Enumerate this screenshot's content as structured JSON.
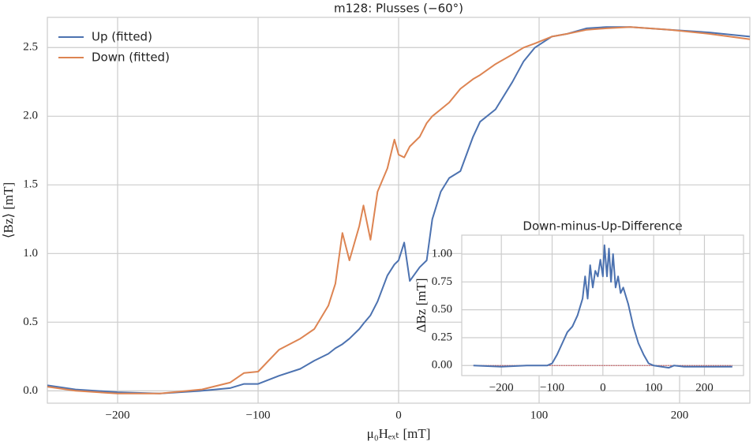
{
  "chart_data": [
    {
      "type": "line",
      "title": "m128: Plusses (−60°)",
      "xlabel": "μ₀Hₑₓₜ [mT]",
      "ylabel": "⟨Bz⟩ [mT]",
      "xlim": [
        -250,
        250
      ],
      "ylim": [
        -0.09,
        2.72
      ],
      "xticks": [
        {
          "value": -200,
          "label": "−200"
        },
        {
          "value": -100,
          "label": "−100"
        },
        0,
        100,
        200
      ],
      "yticks": [
        {
          "value": 0,
          "label": "0.0"
        },
        0.5,
        {
          "value": 1,
          "label": "1.0"
        },
        1.5,
        {
          "value": 2,
          "label": "2.0"
        },
        2.5
      ],
      "grid": true,
      "legend": "upper left",
      "x": [
        -250,
        -230,
        -200,
        -170,
        -140,
        -120,
        -110,
        -100,
        -85,
        -70,
        -60,
        -50,
        -45,
        -40,
        -35,
        -28,
        -25,
        -20,
        -15,
        -8,
        -3,
        0,
        4,
        8,
        15,
        20,
        24,
        30,
        36,
        44,
        53,
        58,
        69,
        81,
        89,
        97,
        109,
        120,
        134,
        148,
        165,
        193,
        221,
        250
      ],
      "series": [
        {
          "name": "Up (fitted)",
          "color": "#4c72b0",
          "values": [
            0.04,
            0.01,
            -0.01,
            -0.02,
            0,
            0.02,
            0.05,
            0.05,
            0.11,
            0.16,
            0.22,
            0.27,
            0.31,
            0.34,
            0.38,
            0.45,
            0.49,
            0.55,
            0.65,
            0.84,
            0.92,
            0.95,
            1.08,
            0.8,
            0.9,
            0.95,
            1.25,
            1.45,
            1.55,
            1.6,
            1.85,
            1.96,
            2.05,
            2.25,
            2.4,
            2.5,
            2.58,
            2.6,
            2.64,
            2.65,
            2.65,
            2.63,
            2.61,
            2.58
          ]
        },
        {
          "name": "Down (fitted)",
          "color": "#dd8452",
          "values": [
            0.03,
            0,
            -0.02,
            -0.02,
            0.01,
            0.06,
            0.13,
            0.14,
            0.3,
            0.38,
            0.45,
            0.62,
            0.78,
            1.15,
            0.95,
            1.2,
            1.35,
            1.1,
            1.45,
            1.62,
            1.83,
            1.72,
            1.7,
            1.78,
            1.85,
            1.95,
            2.0,
            2.05,
            2.1,
            2.2,
            2.27,
            2.3,
            2.38,
            2.45,
            2.5,
            2.53,
            2.58,
            2.6,
            2.63,
            2.64,
            2.65,
            2.63,
            2.6,
            2.56
          ]
        }
      ]
    },
    {
      "type": "line",
      "title": "Down-minus-Up-Difference",
      "ylabel": "ΔBz [mT]",
      "xlim": [
        -278,
        277
      ],
      "ylim": [
        -0.09,
        1.17
      ],
      "xticks": [
        {
          "value": -200,
          "label": "−200"
        },
        {
          "value": -100,
          "label": "−100"
        },
        0,
        100,
        200
      ],
      "yticks": [
        {
          "value": 0,
          "label": "0.00"
        },
        0.25,
        {
          "value": 0.5,
          "label": "0.50"
        },
        0.75,
        {
          "value": 1,
          "label": "1.00"
        }
      ],
      "grid": true,
      "x": [
        -255,
        -200,
        -150,
        -110,
        -100,
        -90,
        -80,
        -70,
        -60,
        -50,
        -40,
        -35,
        -30,
        -25,
        -20,
        -15,
        -10,
        -5,
        0,
        3,
        8,
        12,
        16,
        20,
        25,
        30,
        35,
        40,
        50,
        60,
        70,
        80,
        90,
        100,
        130,
        140,
        160,
        200,
        255
      ],
      "series": [
        {
          "color": "#4c72b0",
          "values": [
            0,
            -0.01,
            0,
            0,
            0.02,
            0.1,
            0.2,
            0.3,
            0.35,
            0.45,
            0.6,
            0.8,
            0.6,
            0.9,
            0.7,
            0.85,
            0.8,
            0.95,
            0.8,
            1.08,
            0.8,
            1.05,
            0.75,
            1.0,
            0.7,
            0.8,
            0.65,
            0.7,
            0.55,
            0.35,
            0.2,
            0.1,
            0.02,
            0,
            -0.02,
            0,
            -0.01,
            -0.01,
            -0.01
          ]
        }
      ]
    }
  ]
}
